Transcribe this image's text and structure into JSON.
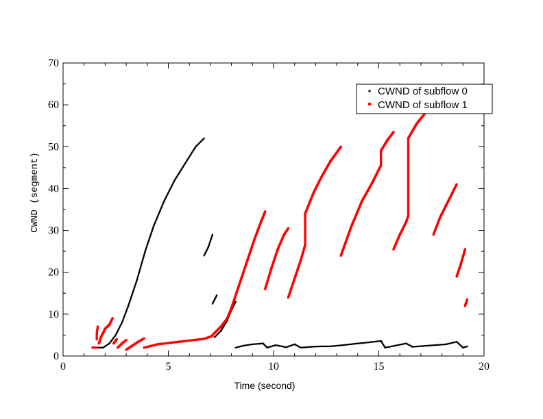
{
  "chart_data": {
    "type": "scatter",
    "xlabel": "Time (second)",
    "ylabel": "CWND (segment)",
    "xlim": [
      0,
      20
    ],
    "ylim": [
      0,
      70
    ],
    "x_ticks": [
      "0",
      "5",
      "10",
      "15",
      "20"
    ],
    "y_ticks": [
      "0",
      "10",
      "20",
      "30",
      "40",
      "50",
      "60",
      "70"
    ],
    "grid": false,
    "legend_position": "top-right",
    "series": [
      {
        "name": "CWND of subflow 0",
        "color": "#000000",
        "marker": "dot",
        "segments": [
          [
            [
              1.5,
              2
            ],
            [
              1.9,
              2
            ],
            [
              2.2,
              3
            ],
            [
              2.5,
              5
            ],
            [
              2.8,
              8
            ],
            [
              3.1,
              12
            ],
            [
              3.5,
              18
            ],
            [
              3.9,
              25
            ],
            [
              4.3,
              31
            ],
            [
              4.8,
              37
            ],
            [
              5.3,
              42
            ],
            [
              5.8,
              46
            ],
            [
              6.3,
              50
            ],
            [
              6.7,
              52
            ]
          ],
          [
            [
              6.7,
              24
            ],
            [
              6.9,
              26
            ],
            [
              7.1,
              29
            ]
          ],
          [
            [
              7.1,
              12.5
            ],
            [
              7.2,
              13.5
            ],
            [
              7.3,
              14.5
            ]
          ],
          [
            [
              7.2,
              4.5
            ],
            [
              7.5,
              6
            ],
            [
              7.8,
              8.5
            ],
            [
              8.0,
              11
            ],
            [
              8.2,
              13
            ]
          ],
          [
            [
              8.2,
              2
            ],
            [
              8.6,
              2.5
            ],
            [
              9.0,
              2.8
            ],
            [
              9.5,
              3.0
            ],
            [
              9.7,
              2.0
            ],
            [
              10.1,
              2.6
            ],
            [
              10.6,
              2.1
            ],
            [
              11.0,
              2.8
            ],
            [
              11.3,
              2.0
            ],
            [
              11.8,
              2.2
            ],
            [
              12.2,
              2.3
            ],
            [
              12.7,
              2.3
            ],
            [
              13.3,
              2.6
            ],
            [
              14.0,
              3.0
            ],
            [
              14.6,
              3.3
            ],
            [
              15.1,
              3.6
            ],
            [
              15.3,
              2.0
            ],
            [
              15.8,
              2.5
            ],
            [
              16.3,
              3.0
            ],
            [
              16.6,
              2.2
            ],
            [
              17.4,
              2.5
            ],
            [
              18.2,
              2.8
            ],
            [
              18.7,
              3.4
            ],
            [
              19.0,
              2.0
            ],
            [
              19.2,
              2.3
            ]
          ]
        ]
      },
      {
        "name": "CWND of subflow 1",
        "color": "#ff0000",
        "marker": "square",
        "segments": [
          [
            [
              1.4,
              2
            ],
            [
              1.6,
              2
            ]
          ],
          [
            [
              1.6,
              4
            ],
            [
              1.6,
              5.5
            ],
            [
              1.65,
              7
            ]
          ],
          [
            [
              1.7,
              3
            ],
            [
              1.8,
              4.5
            ],
            [
              1.9,
              5.5
            ],
            [
              2.0,
              6.5
            ],
            [
              2.2,
              7.5
            ],
            [
              2.35,
              9
            ]
          ],
          [
            [
              2.4,
              3
            ],
            [
              2.55,
              4
            ]
          ],
          [
            [
              2.6,
              2
            ],
            [
              2.8,
              3
            ],
            [
              3.0,
              3.8
            ]
          ],
          [
            [
              3.0,
              1.5
            ],
            [
              3.3,
              2.5
            ],
            [
              3.6,
              3.5
            ],
            [
              3.85,
              4.2
            ]
          ],
          [
            [
              3.85,
              2
            ],
            [
              4.5,
              2.8
            ],
            [
              5.5,
              3.4
            ],
            [
              6.7,
              4.1
            ],
            [
              7.1,
              4.8
            ]
          ],
          [
            [
              7.1,
              5
            ],
            [
              7.5,
              7
            ],
            [
              7.8,
              9
            ],
            [
              8.0,
              11.5
            ],
            [
              8.3,
              16
            ],
            [
              8.7,
              22
            ],
            [
              9.1,
              28
            ],
            [
              9.4,
              32
            ],
            [
              9.6,
              34.5
            ]
          ],
          [
            [
              9.6,
              16
            ],
            [
              9.9,
              21
            ],
            [
              10.2,
              25.5
            ],
            [
              10.5,
              29
            ],
            [
              10.7,
              30.5
            ]
          ],
          [
            [
              10.7,
              14
            ],
            [
              11.0,
              18.5
            ],
            [
              11.3,
              23
            ],
            [
              11.5,
              26.5
            ],
            [
              11.5,
              34
            ]
          ],
          [
            [
              11.5,
              34
            ],
            [
              11.9,
              39
            ],
            [
              12.3,
              43
            ],
            [
              12.7,
              46.5
            ],
            [
              13.2,
              50
            ]
          ],
          [
            [
              13.2,
              24
            ],
            [
              13.7,
              31
            ],
            [
              14.2,
              37
            ],
            [
              14.7,
              41.5
            ],
            [
              15.1,
              45.5
            ]
          ],
          [
            [
              15.1,
              45.5
            ],
            [
              15.1,
              49
            ]
          ],
          [
            [
              15.1,
              49
            ],
            [
              15.4,
              51.5
            ],
            [
              15.7,
              53.5
            ]
          ],
          [
            [
              15.7,
              25.5
            ],
            [
              16.0,
              29
            ],
            [
              16.3,
              32
            ],
            [
              16.4,
              33.5
            ]
          ],
          [
            [
              16.4,
              33.5
            ],
            [
              16.4,
              52
            ]
          ],
          [
            [
              16.4,
              52
            ],
            [
              16.8,
              55.5
            ],
            [
              17.2,
              58
            ],
            [
              17.5,
              60
            ],
            [
              17.8,
              62
            ]
          ],
          [
            [
              17.6,
              29
            ],
            [
              17.9,
              33
            ],
            [
              18.2,
              36
            ],
            [
              18.5,
              39
            ],
            [
              18.7,
              41
            ]
          ],
          [
            [
              18.7,
              19
            ],
            [
              18.9,
              22
            ],
            [
              19.1,
              25.5
            ]
          ],
          [
            [
              19.1,
              12
            ],
            [
              19.2,
              13.5
            ]
          ]
        ]
      }
    ]
  }
}
